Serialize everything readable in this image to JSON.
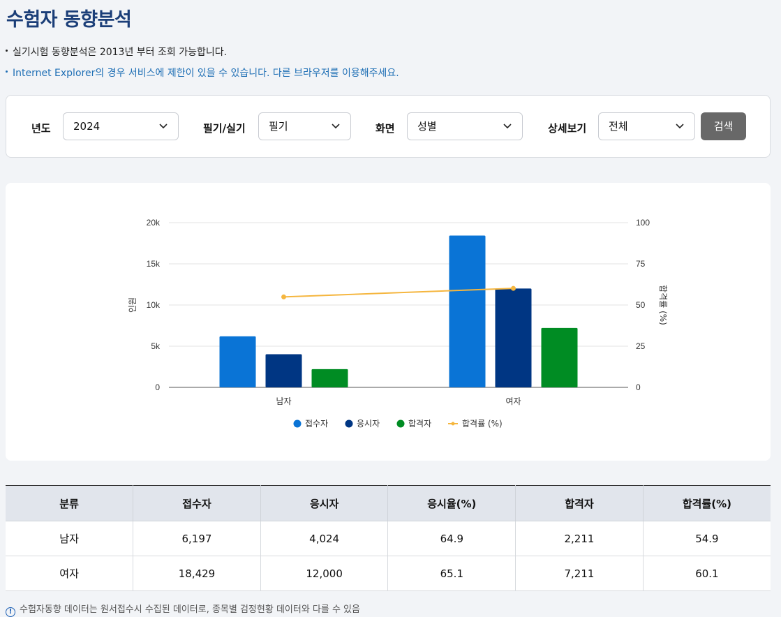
{
  "page": {
    "title": "수험자 동향분석",
    "notices": [
      "실기시험 동향분석은 2013년 부터 조회 가능합니다.",
      "Internet Explorer의 경우 서비스에 제한이 있을 수 있습니다. 다른 브라우저를 이용해주세요."
    ]
  },
  "filters": {
    "year_label": "년도",
    "year_value": "2024",
    "type_label": "필기/실기",
    "type_value": "필기",
    "view_label": "화면",
    "view_value": "성별",
    "detail_label": "상세보기",
    "detail_value": "전체",
    "search_button": "검색"
  },
  "colors": {
    "accent": "#1b3e78",
    "applicants": "#0a74d6",
    "examinees": "#003683",
    "passers": "#008c23",
    "pass_rate": "#f5b63f"
  },
  "chart_data": {
    "type": "bar",
    "categories": [
      "남자",
      "여자"
    ],
    "series": [
      {
        "name": "접수자",
        "values": [
          6197,
          18429
        ]
      },
      {
        "name": "응시자",
        "values": [
          4024,
          12000
        ]
      },
      {
        "name": "합격자",
        "values": [
          2211,
          7211
        ]
      },
      {
        "name": "합격률 (%)",
        "type": "line",
        "axis": "right",
        "values": [
          54.9,
          60.1
        ]
      }
    ],
    "ylabel": "인원",
    "y2label": "합격률 (%)",
    "ylim": [
      0,
      20000
    ],
    "y2lim": [
      0,
      100
    ],
    "yticks": [
      "0",
      "5k",
      "10k",
      "15k",
      "20k"
    ],
    "y2ticks": [
      "0",
      "25",
      "50",
      "75",
      "100"
    ],
    "grid": true,
    "legend": "bottom"
  },
  "table": {
    "headers": [
      "분류",
      "접수자",
      "응시자",
      "응시율(%)",
      "합격자",
      "합격률(%)"
    ],
    "rows": [
      [
        "남자",
        "6,197",
        "4,024",
        "64.9",
        "2,211",
        "54.9"
      ],
      [
        "여자",
        "18,429",
        "12,000",
        "65.1",
        "7,211",
        "60.1"
      ]
    ]
  },
  "footnote": {
    "icon": "info-icon",
    "text": "수험자동향 데이터는 원서접수시 수집된 데이터로, 종목별 검정현황 데이터와 다를 수 있음"
  }
}
